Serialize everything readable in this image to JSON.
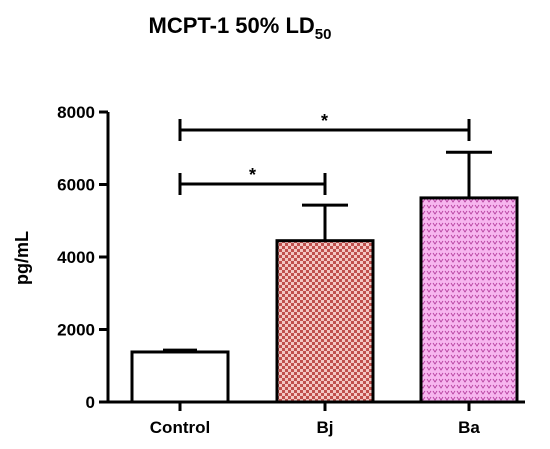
{
  "chart_data": {
    "type": "bar",
    "title": "MCPT-1 50% LD",
    "title_subscript": "50",
    "ylabel": "pg/mL",
    "xlabel": "",
    "ylim": [
      0,
      8000
    ],
    "yticks": [
      "0",
      "2000",
      "4000",
      "6000",
      "8000"
    ],
    "categories": [
      "Control",
      "Bj",
      "Ba"
    ],
    "values": [
      1380,
      4450,
      5630
    ],
    "errors": [
      50,
      980,
      1260
    ],
    "bar_colors": [
      "#ffffff",
      "#c0504d",
      "#f2a2e8"
    ],
    "bar_patterns": [
      "none",
      "checker",
      "dots"
    ],
    "significance": [
      {
        "from": "Control",
        "to": "Bj",
        "label": "*"
      },
      {
        "from": "Control",
        "to": "Ba",
        "label": "*"
      }
    ]
  }
}
